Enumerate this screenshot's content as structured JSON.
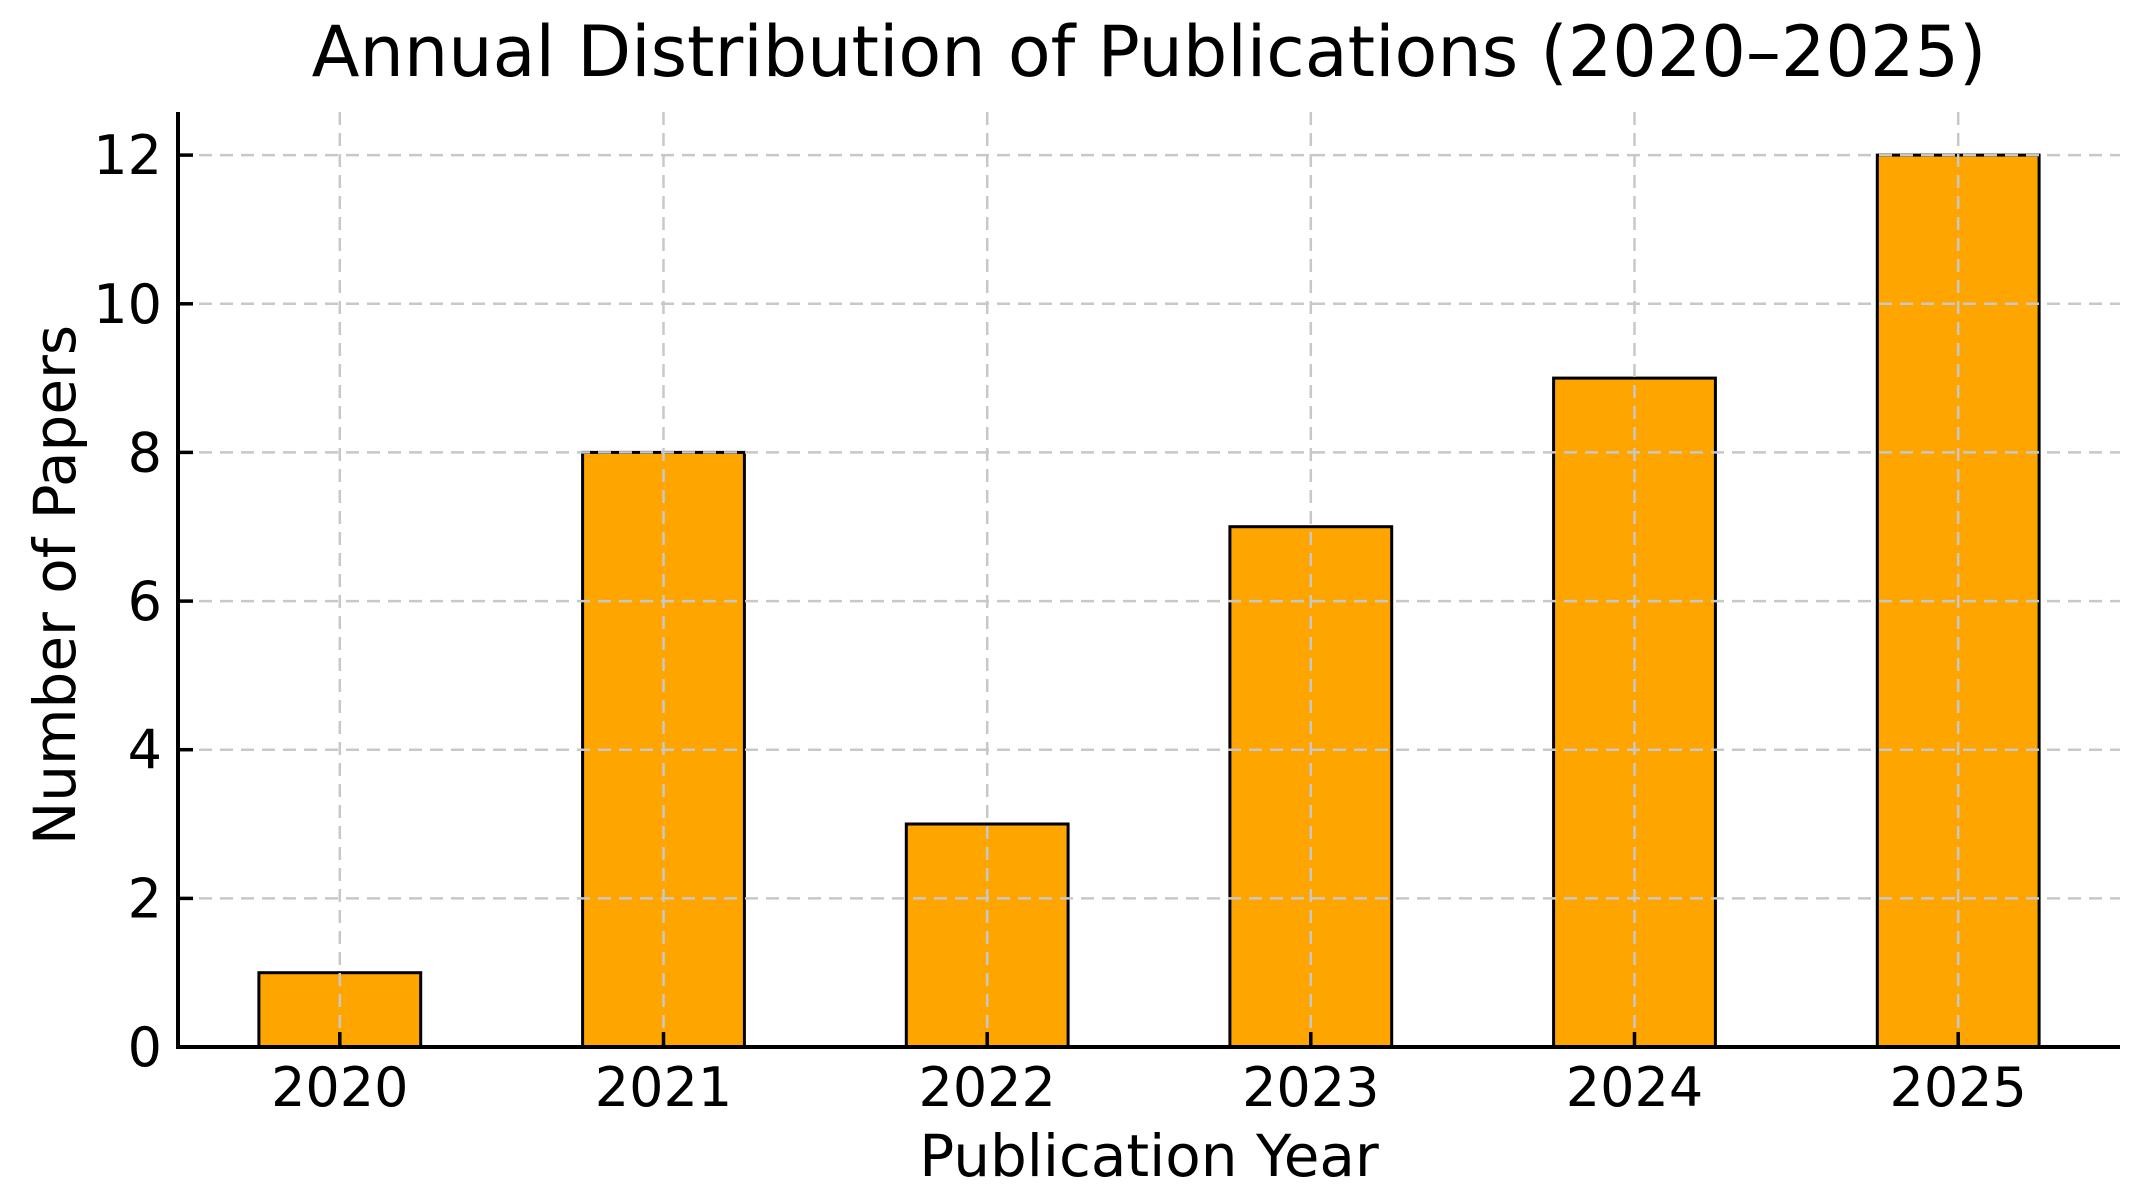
{
  "chart_data": {
    "type": "bar",
    "title": "Annual Distribution of Publications (2020–2025)",
    "xlabel": "Publication Year",
    "ylabel": "Number of Papers",
    "categories": [
      "2020",
      "2021",
      "2022",
      "2023",
      "2024",
      "2025"
    ],
    "values": [
      1,
      8,
      3,
      7,
      9,
      12
    ],
    "yticks": [
      0,
      2,
      4,
      6,
      8,
      10,
      12
    ],
    "ylim": [
      0,
      12.58
    ],
    "bar_width_fraction": 0.5,
    "grid": true,
    "grid_style": "dashed",
    "gridlines_above_bars": true,
    "tick_direction": "in",
    "legend": false,
    "colors": {
      "bar_fill": "#FFA500",
      "bar_edge": "#000000",
      "grid": "#c8c8c8",
      "axis": "#000000",
      "text": "#000000",
      "background": "#ffffff"
    }
  }
}
